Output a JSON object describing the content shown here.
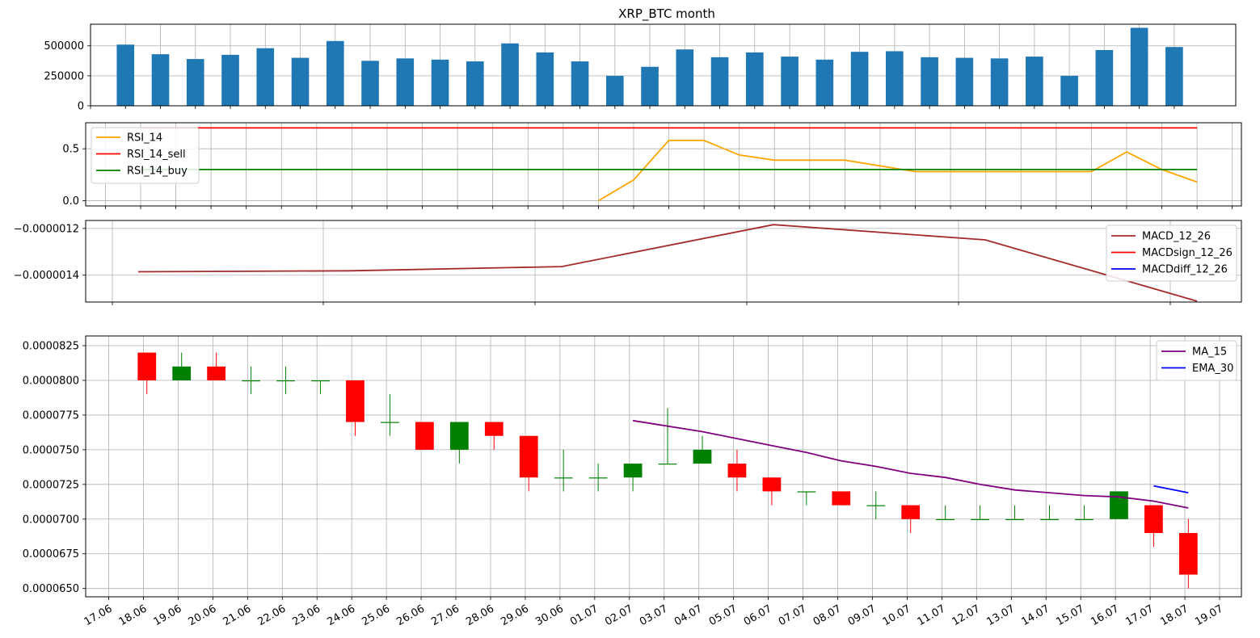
{
  "chart_data": [
    {
      "type": "bar",
      "panel": "volume",
      "title": "XRP_BTC  month",
      "categories": [
        "18.06",
        "19.06",
        "20.06",
        "21.06",
        "22.06",
        "23.06",
        "24.06",
        "25.06",
        "26.06",
        "27.06",
        "28.06",
        "29.06",
        "30.06",
        "01.07",
        "02.07",
        "03.07",
        "04.07",
        "05.07",
        "06.07",
        "07.07",
        "08.07",
        "09.07",
        "10.07",
        "11.07",
        "12.07",
        "13.07",
        "14.07",
        "15.07",
        "16.07",
        "17.07",
        "18.07"
      ],
      "values": [
        510000,
        430000,
        390000,
        425000,
        480000,
        400000,
        540000,
        375000,
        395000,
        385000,
        370000,
        520000,
        445000,
        370000,
        250000,
        325000,
        470000,
        405000,
        445000,
        410000,
        385000,
        450000,
        455000,
        405000,
        400000,
        395000,
        410000,
        250000,
        465000,
        650000,
        490000
      ],
      "ylim": [
        0,
        680000
      ],
      "yticks": [
        0,
        250000,
        500000
      ],
      "ytick_labels": [
        "0",
        "250000",
        "500000"
      ],
      "color": "#1f77b4",
      "grid": true
    },
    {
      "type": "line",
      "panel": "rsi",
      "series": [
        {
          "name": "RSI_14",
          "color": "#ffa500",
          "x": [
            "01.07",
            "02.07",
            "03.07",
            "04.07",
            "05.07",
            "06.07",
            "08.07",
            "10.07",
            "15.07",
            "16.07",
            "17.07",
            "18.07"
          ],
          "values": [
            0.0,
            0.2,
            0.58,
            0.58,
            0.44,
            0.39,
            0.39,
            0.28,
            0.28,
            0.47,
            0.3,
            0.18
          ]
        },
        {
          "name": "RSI_14_sell",
          "color": "#ff0000",
          "x": [
            "18.06",
            "18.07"
          ],
          "values": [
            0.7,
            0.7
          ]
        },
        {
          "name": "RSI_14_buy",
          "color": "#008000",
          "x": [
            "18.06",
            "18.07"
          ],
          "values": [
            0.3,
            0.3
          ]
        }
      ],
      "ylim": [
        -0.05,
        0.75
      ],
      "yticks": [
        0.0,
        0.5
      ],
      "ytick_labels": [
        "0.0",
        "0.5"
      ],
      "legend": "upper-left",
      "grid": true
    },
    {
      "type": "line",
      "panel": "macd",
      "series": [
        {
          "name": "MACD_12_26",
          "color": "#a52a2a",
          "x": [
            "18.06",
            "24.06",
            "30.06",
            "06.07",
            "12.07",
            "18.07"
          ],
          "values": [
            -1.3853e-06,
            -1.3813e-06,
            -1.3633e-06,
            -1.1839e-06,
            -1.2489e-06,
            -1.5111e-06
          ]
        },
        {
          "name": "MACDsign_12_26",
          "color": "#ff0000",
          "x": [],
          "values": []
        },
        {
          "name": "MACDdiff_12_26",
          "color": "#0000ff",
          "x": [],
          "values": []
        }
      ],
      "ylim": [
        -1.515e-06,
        -1.166e-06
      ],
      "yticks": [
        -1.2e-06,
        -1.4e-06
      ],
      "ytick_labels": [
        "−0.0000012",
        "−0.0000014"
      ],
      "legend": "upper-right",
      "grid": true
    },
    {
      "type": "candlestick",
      "panel": "price",
      "candles": [
        {
          "x": "18.06",
          "open": 8e-05,
          "close": 8.2e-05,
          "high": 8.2e-05,
          "low": 7.9e-05,
          "color": "#ff0000"
        },
        {
          "x": "19.06",
          "open": 8e-05,
          "close": 8.1e-05,
          "high": 8.2e-05,
          "low": 8e-05,
          "color": "#008000"
        },
        {
          "x": "20.06",
          "open": 8.1e-05,
          "close": 8e-05,
          "high": 8.2e-05,
          "low": 8e-05,
          "color": "#ff0000"
        },
        {
          "x": "21.06",
          "open": 8e-05,
          "close": 8e-05,
          "high": 8.1e-05,
          "low": 7.9e-05,
          "color": "#008000"
        },
        {
          "x": "22.06",
          "open": 8e-05,
          "close": 8e-05,
          "high": 8.1e-05,
          "low": 7.9e-05,
          "color": "#008000"
        },
        {
          "x": "23.06",
          "open": 8e-05,
          "close": 8e-05,
          "high": 8e-05,
          "low": 7.9e-05,
          "color": "#008000"
        },
        {
          "x": "24.06",
          "open": 8e-05,
          "close": 7.7e-05,
          "high": 8e-05,
          "low": 7.6e-05,
          "color": "#ff0000"
        },
        {
          "x": "25.06",
          "open": 7.7e-05,
          "close": 7.7e-05,
          "high": 7.9e-05,
          "low": 7.6e-05,
          "color": "#008000"
        },
        {
          "x": "26.06",
          "open": 7.7e-05,
          "close": 7.5e-05,
          "high": 7.7e-05,
          "low": 7.5e-05,
          "color": "#ff0000"
        },
        {
          "x": "27.06",
          "open": 7.5e-05,
          "close": 7.7e-05,
          "high": 7.7e-05,
          "low": 7.4e-05,
          "color": "#008000"
        },
        {
          "x": "28.06",
          "open": 7.7e-05,
          "close": 7.6e-05,
          "high": 7.7e-05,
          "low": 7.5e-05,
          "color": "#ff0000"
        },
        {
          "x": "29.06",
          "open": 7.6e-05,
          "close": 7.3e-05,
          "high": 7.6e-05,
          "low": 7.2e-05,
          "color": "#ff0000"
        },
        {
          "x": "30.06",
          "open": 7.3e-05,
          "close": 7.3e-05,
          "high": 7.5e-05,
          "low": 7.2e-05,
          "color": "#008000"
        },
        {
          "x": "01.07",
          "open": 7.3e-05,
          "close": 7.3e-05,
          "high": 7.4e-05,
          "low": 7.2e-05,
          "color": "#008000"
        },
        {
          "x": "02.07",
          "open": 7.3e-05,
          "close": 7.4e-05,
          "high": 7.4e-05,
          "low": 7.2e-05,
          "color": "#008000"
        },
        {
          "x": "03.07",
          "open": 7.4e-05,
          "close": 7.4e-05,
          "high": 7.8e-05,
          "low": 7.4e-05,
          "color": "#008000"
        },
        {
          "x": "04.07",
          "open": 7.4e-05,
          "close": 7.5e-05,
          "high": 7.6e-05,
          "low": 7.4e-05,
          "color": "#008000"
        },
        {
          "x": "05.07",
          "open": 7.4e-05,
          "close": 7.3e-05,
          "high": 7.5e-05,
          "low": 7.2e-05,
          "color": "#ff0000"
        },
        {
          "x": "06.07",
          "open": 7.3e-05,
          "close": 7.2e-05,
          "high": 7.3e-05,
          "low": 7.1e-05,
          "color": "#ff0000"
        },
        {
          "x": "07.07",
          "open": 7.2e-05,
          "close": 7.2e-05,
          "high": 7.2e-05,
          "low": 7.1e-05,
          "color": "#008000"
        },
        {
          "x": "08.07",
          "open": 7.2e-05,
          "close": 7.1e-05,
          "high": 7.2e-05,
          "low": 7.1e-05,
          "color": "#ff0000"
        },
        {
          "x": "09.07",
          "open": 7.1e-05,
          "close": 7.1e-05,
          "high": 7.2e-05,
          "low": 7e-05,
          "color": "#008000"
        },
        {
          "x": "10.07",
          "open": 7.1e-05,
          "close": 7e-05,
          "high": 7.1e-05,
          "low": 6.9e-05,
          "color": "#ff0000"
        },
        {
          "x": "11.07",
          "open": 7e-05,
          "close": 7e-05,
          "high": 7.1e-05,
          "low": 7e-05,
          "color": "#008000"
        },
        {
          "x": "12.07",
          "open": 7e-05,
          "close": 7e-05,
          "high": 7.1e-05,
          "low": 7e-05,
          "color": "#008000"
        },
        {
          "x": "13.07",
          "open": 7e-05,
          "close": 7e-05,
          "high": 7.1e-05,
          "low": 7e-05,
          "color": "#008000"
        },
        {
          "x": "14.07",
          "open": 7e-05,
          "close": 7e-05,
          "high": 7.1e-05,
          "low": 7e-05,
          "color": "#008000"
        },
        {
          "x": "15.07",
          "open": 7e-05,
          "close": 7e-05,
          "high": 7.1e-05,
          "low": 7e-05,
          "color": "#008000"
        },
        {
          "x": "16.07",
          "open": 7e-05,
          "close": 7.2e-05,
          "high": 7.2e-05,
          "low": 7e-05,
          "color": "#008000"
        },
        {
          "x": "17.07",
          "open": 7.1e-05,
          "close": 6.9e-05,
          "high": 7.1e-05,
          "low": 6.8e-05,
          "color": "#ff0000"
        },
        {
          "x": "18.07",
          "open": 6.9e-05,
          "close": 6.6e-05,
          "high": 7e-05,
          "low": 6.5e-05,
          "color": "#ff0000"
        }
      ],
      "series": [
        {
          "name": "MA_15",
          "color": "#800080",
          "x": [
            "02.07",
            "04.07",
            "05.07",
            "06.07",
            "07.07",
            "08.07",
            "09.07",
            "10.07",
            "11.07",
            "12.07",
            "13.07",
            "14.07",
            "15.07",
            "16.07",
            "17.07",
            "18.07"
          ],
          "values": [
            7.71e-05,
            7.63e-05,
            7.58e-05,
            7.53e-05,
            7.48e-05,
            7.42e-05,
            7.38e-05,
            7.33e-05,
            7.3e-05,
            7.25e-05,
            7.21e-05,
            7.19e-05,
            7.17e-05,
            7.16e-05,
            7.13e-05,
            7.08e-05
          ]
        },
        {
          "name": "EMA_30",
          "color": "#0000ff",
          "x": [
            "17.07",
            "18.07"
          ],
          "values": [
            7.24e-05,
            7.19e-05
          ]
        }
      ],
      "ylim": [
        6.44e-05,
        8.32e-05
      ],
      "yticks": [
        6.5e-05,
        6.75e-05,
        7e-05,
        7.25e-05,
        7.5e-05,
        7.75e-05,
        8e-05,
        8.25e-05
      ],
      "ytick_labels": [
        "0.0000650",
        "0.0000675",
        "0.0000700",
        "0.0000725",
        "0.0000750",
        "0.0000775",
        "0.0000800",
        "0.0000825"
      ],
      "xtick_labels": [
        "17.06",
        "18.06",
        "19.06",
        "20.06",
        "21.06",
        "22.06",
        "23.06",
        "24.06",
        "25.06",
        "26.06",
        "27.06",
        "28.06",
        "29.06",
        "30.06",
        "01.07",
        "02.07",
        "03.07",
        "04.07",
        "05.07",
        "06.07",
        "07.07",
        "08.07",
        "09.07",
        "10.07",
        "11.07",
        "12.07",
        "13.07",
        "14.07",
        "15.07",
        "16.07",
        "17.07",
        "18.07",
        "19.07"
      ],
      "legend": "upper-right",
      "grid": true
    }
  ]
}
